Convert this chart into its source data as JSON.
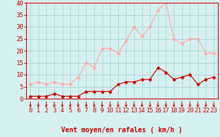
{
  "x": [
    0,
    1,
    2,
    3,
    4,
    5,
    6,
    7,
    8,
    9,
    10,
    11,
    12,
    13,
    14,
    15,
    16,
    17,
    18,
    19,
    20,
    21,
    22,
    23
  ],
  "wind_avg": [
    1,
    1,
    1,
    2,
    1,
    1,
    1,
    3,
    3,
    3,
    3,
    6,
    7,
    7,
    8,
    8,
    13,
    11,
    8,
    9,
    10,
    6,
    8,
    9
  ],
  "wind_gust": [
    6,
    7,
    6,
    7,
    6,
    6,
    9,
    15,
    13,
    21,
    21,
    19,
    24,
    30,
    26,
    30,
    37,
    40,
    25,
    23,
    25,
    25,
    19,
    19
  ],
  "avg_color": "#cc0000",
  "gust_color": "#ffaaaa",
  "bg_color": "#d6f0f0",
  "grid_color": "#b0d8d8",
  "xlabel": "Vent moyen/en rafales ( km/h )",
  "ylim": [
    0,
    40
  ],
  "xlim": [
    -0.5,
    23.5
  ],
  "yticks": [
    0,
    5,
    10,
    15,
    20,
    25,
    30,
    35,
    40
  ],
  "xticks": [
    0,
    1,
    2,
    3,
    4,
    5,
    6,
    7,
    8,
    9,
    10,
    11,
    12,
    13,
    14,
    15,
    16,
    17,
    18,
    19,
    20,
    21,
    22,
    23
  ],
  "tick_color": "#cc0000",
  "label_color": "#cc0000",
  "axis_label_fontsize": 7,
  "tick_fontsize": 6.5
}
